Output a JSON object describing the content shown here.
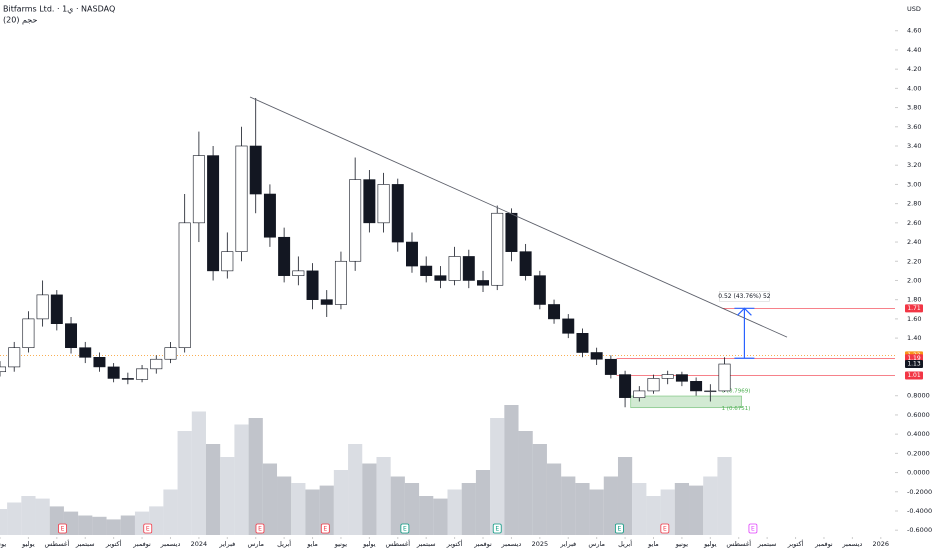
{
  "header": {
    "title": "Bitfarms Ltd. · 1ي · NASDAQ",
    "indicator": "حجم (20)",
    "currency": "USD"
  },
  "chart_data": {
    "type": "candlestick",
    "x": [
      0,
      0.5,
      1,
      1.5,
      2,
      2.5,
      3,
      3.5,
      4,
      4.5,
      5,
      5.5,
      6,
      6.5,
      7,
      7.5,
      8,
      8.5,
      9,
      9.5,
      10,
      10.5,
      11,
      11.5,
      12,
      12.5,
      13,
      13.5,
      14,
      14.5,
      15,
      15.5,
      16,
      16.5,
      17,
      17.5,
      18,
      18.5,
      19,
      19.5,
      20,
      20.5,
      21,
      21.5,
      22,
      22.5,
      23,
      23.5,
      24,
      24.5,
      25,
      25.5
    ],
    "open": [
      1.05,
      1.1,
      1.3,
      1.6,
      1.85,
      1.55,
      1.3,
      1.2,
      1.1,
      0.98,
      0.97,
      1.08,
      1.18,
      1.3,
      2.6,
      3.3,
      2.1,
      2.3,
      3.4,
      2.9,
      2.45,
      2.05,
      2.1,
      1.8,
      1.75,
      2.2,
      3.05,
      2.6,
      3.0,
      2.4,
      2.15,
      2.05,
      2.0,
      2.25,
      2.0,
      1.95,
      2.7,
      2.3,
      2.05,
      1.75,
      1.6,
      1.45,
      1.25,
      1.18,
      1.02,
      0.78,
      0.85,
      0.98,
      1.02,
      0.95,
      0.85,
      0.85
    ],
    "high": [
      1.16,
      1.36,
      1.68,
      2.0,
      1.9,
      1.62,
      1.36,
      1.25,
      1.14,
      1.04,
      1.12,
      1.22,
      1.36,
      2.9,
      3.55,
      3.4,
      2.5,
      3.6,
      3.9,
      3.0,
      2.55,
      2.25,
      2.18,
      1.9,
      2.3,
      3.28,
      3.15,
      3.12,
      3.06,
      2.5,
      2.25,
      2.15,
      2.35,
      2.32,
      2.1,
      2.78,
      2.75,
      2.38,
      2.1,
      1.8,
      1.65,
      1.5,
      1.3,
      1.22,
      1.06,
      0.9,
      1.02,
      1.06,
      1.05,
      0.99,
      0.92,
      1.2
    ],
    "low": [
      1.0,
      1.05,
      1.25,
      1.52,
      1.48,
      1.24,
      1.14,
      1.05,
      0.94,
      0.92,
      0.94,
      1.03,
      1.14,
      1.25,
      2.4,
      2.0,
      2.02,
      2.2,
      2.7,
      2.35,
      1.98,
      1.95,
      1.7,
      1.62,
      1.7,
      2.1,
      2.5,
      2.5,
      2.3,
      2.08,
      1.98,
      1.92,
      1.95,
      1.92,
      1.88,
      1.9,
      2.2,
      2.0,
      1.7,
      1.55,
      1.4,
      1.2,
      1.12,
      0.98,
      0.68,
      0.74,
      0.82,
      0.92,
      0.9,
      0.8,
      0.74,
      0.84
    ],
    "close": [
      1.1,
      1.3,
      1.6,
      1.85,
      1.55,
      1.3,
      1.2,
      1.1,
      0.98,
      0.97,
      1.08,
      1.18,
      1.3,
      2.6,
      3.3,
      2.1,
      2.3,
      3.4,
      2.9,
      2.45,
      2.05,
      2.1,
      1.8,
      1.75,
      2.2,
      3.05,
      2.6,
      3.0,
      2.4,
      2.15,
      2.05,
      2.0,
      2.25,
      2.0,
      1.95,
      2.7,
      2.3,
      2.05,
      1.75,
      1.6,
      1.45,
      1.25,
      1.18,
      1.02,
      0.78,
      0.85,
      0.98,
      1.02,
      0.95,
      0.85,
      0.85,
      1.13
    ],
    "volume": [
      20,
      25,
      30,
      28,
      22,
      18,
      15,
      14,
      12,
      15,
      18,
      22,
      35,
      80,
      95,
      70,
      60,
      85,
      90,
      55,
      45,
      40,
      35,
      38,
      50,
      70,
      55,
      60,
      45,
      40,
      30,
      28,
      35,
      40,
      50,
      90,
      100,
      80,
      70,
      55,
      45,
      40,
      35,
      45,
      60,
      40,
      30,
      35,
      40,
      38,
      45,
      60
    ],
    "xlim": [
      0,
      31.5
    ],
    "ylim": [
      -0.65,
      4.92
    ],
    "xticks": [
      {
        "value": 0,
        "label": "يونيو"
      },
      {
        "value": 1,
        "label": "يوليو"
      },
      {
        "value": 2,
        "label": "أغسطس"
      },
      {
        "value": 3,
        "label": "سبتمبر"
      },
      {
        "value": 4,
        "label": "أكتوبر"
      },
      {
        "value": 5,
        "label": "نوفمبر"
      },
      {
        "value": 6,
        "label": "ديسمبر"
      },
      {
        "value": 7,
        "label": "2024"
      },
      {
        "value": 8,
        "label": "فبراير"
      },
      {
        "value": 9,
        "label": "مارس"
      },
      {
        "value": 10,
        "label": "أبريل"
      },
      {
        "value": 11,
        "label": "مايو"
      },
      {
        "value": 12,
        "label": "يونيو"
      },
      {
        "value": 13,
        "label": "يوليو"
      },
      {
        "value": 14,
        "label": "أغسطس"
      },
      {
        "value": 15,
        "label": "سبتمبر"
      },
      {
        "value": 16,
        "label": "أكتوبر"
      },
      {
        "value": 17,
        "label": "نوفمبر"
      },
      {
        "value": 18,
        "label": "ديسمبر"
      },
      {
        "value": 19,
        "label": "2025"
      },
      {
        "value": 20,
        "label": "فبراير"
      },
      {
        "value": 21,
        "label": "مارس"
      },
      {
        "value": 22,
        "label": "أبريل"
      },
      {
        "value": 23,
        "label": "مايو"
      },
      {
        "value": 24,
        "label": "يونيو"
      },
      {
        "value": 25,
        "label": "يوليو"
      },
      {
        "value": 26,
        "label": "أغسطس"
      },
      {
        "value": 27,
        "label": "سبتمبر"
      },
      {
        "value": 28,
        "label": "أكتوبر"
      },
      {
        "value": 29,
        "label": "نوفمبر"
      },
      {
        "value": 30,
        "label": "ديسمبر"
      },
      {
        "value": 31,
        "label": "2026"
      }
    ],
    "yticks": [
      {
        "value": 4.6,
        "label": "4.60"
      },
      {
        "value": 4.4,
        "label": "4.40"
      },
      {
        "value": 4.2,
        "label": "4.20"
      },
      {
        "value": 4.0,
        "label": "4.00"
      },
      {
        "value": 3.8,
        "label": "3.80"
      },
      {
        "value": 3.6,
        "label": "3.60"
      },
      {
        "value": 3.4,
        "label": "3.40"
      },
      {
        "value": 3.2,
        "label": "3.20"
      },
      {
        "value": 3.0,
        "label": "3.00"
      },
      {
        "value": 2.8,
        "label": "2.80"
      },
      {
        "value": 2.6,
        "label": "2.60"
      },
      {
        "value": 2.4,
        "label": "2.40"
      },
      {
        "value": 2.2,
        "label": "2.20"
      },
      {
        "value": 2.0,
        "label": "2.00"
      },
      {
        "value": 1.8,
        "label": "1.80"
      },
      {
        "value": 1.6,
        "label": "1.60"
      },
      {
        "value": 1.4,
        "label": "1.40"
      },
      {
        "value": 0.8,
        "label": "0.8000"
      },
      {
        "value": 0.6,
        "label": "0.6000"
      },
      {
        "value": 0.4,
        "label": "0.4000"
      },
      {
        "value": 0.2,
        "label": "0.2000"
      },
      {
        "value": 0,
        "label": "0.0000"
      },
      {
        "value": -0.2,
        "label": "-0.2000"
      },
      {
        "value": -0.4,
        "label": "-0.4000"
      },
      {
        "value": -0.6,
        "label": "-0.6000"
      }
    ],
    "trendline": {
      "x": [
        8.8,
        27.7
      ],
      "y": [
        3.91,
        1.41
      ]
    },
    "levels": [
      {
        "value": 1.71,
        "from": 25.4,
        "color": "#f23645"
      },
      {
        "value": 1.19,
        "from": 21.7,
        "color": "#f23645"
      },
      {
        "value": 1.01,
        "from": 21.7,
        "color": "#f23645"
      }
    ],
    "price_tags": [
      {
        "value": 1.71,
        "color": "#f23645"
      },
      {
        "value": 1.22,
        "color": "#f7931a"
      },
      {
        "value": 1.19,
        "color": "#f23645"
      },
      {
        "value": 1.13,
        "color": "#131722"
      },
      {
        "value": 1.01,
        "color": "#f23645"
      }
    ],
    "reference_line": 1.22,
    "measure": {
      "x": 26.2,
      "from": 1.19,
      "to": 1.71,
      "label": "0.52 (43.76%) 52"
    },
    "fib_zone": {
      "x": [
        22.2,
        26.1
      ],
      "top": 0.7969,
      "bottom": 0.6751,
      "top_label": "0 (0.7969)",
      "bottom_label": "1 (0.6751)"
    },
    "events": [
      {
        "x": 2.2,
        "label": "E",
        "color": "#f23645"
      },
      {
        "x": 5.2,
        "label": "E",
        "color": "#f23645"
      },
      {
        "x": 9.15,
        "label": "E",
        "color": "#f23645"
      },
      {
        "x": 11.45,
        "label": "E",
        "color": "#f23645"
      },
      {
        "x": 14.25,
        "label": "E",
        "color": "#089981"
      },
      {
        "x": 17.5,
        "label": "E",
        "color": "#089981"
      },
      {
        "x": 21.8,
        "label": "E",
        "color": "#089981"
      },
      {
        "x": 23.4,
        "label": "E",
        "color": "#f23645"
      },
      {
        "x": 26.5,
        "label": "E",
        "color": "#e040fb"
      }
    ]
  }
}
